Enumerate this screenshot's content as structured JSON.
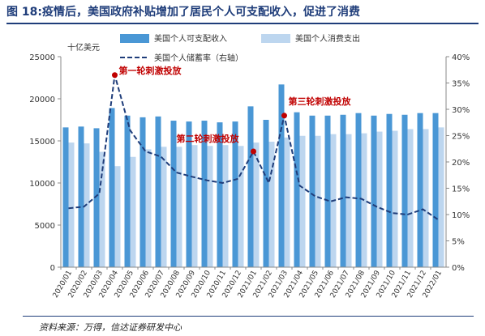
{
  "header": {
    "title": "图 18:疫情后，美国政府补贴增加了居民个人可支配收入，促进了消费"
  },
  "footer": {
    "source": "资料来源：万得，信达证券研发中心"
  },
  "colors": {
    "income": "#4a97d5",
    "consumption": "#bdd6ef",
    "savings_line": "#1f3d7a",
    "annotation": "#c00000",
    "title": "#1f3d7a"
  },
  "chart_data": {
    "type": "bar",
    "unit_label": "十亿美元",
    "categories": [
      "2020/01",
      "2020/02",
      "2020/03",
      "2020/04",
      "2020/05",
      "2020/06",
      "2020/07",
      "2020/08",
      "2020/09",
      "2020/10",
      "2020/11",
      "2020/12",
      "2021/01",
      "2021/02",
      "2021/03",
      "2021/04",
      "2021/05",
      "2021/06",
      "2021/07",
      "2021/08",
      "2021/09",
      "2021/10",
      "2021/11",
      "2021/12",
      "2022/01"
    ],
    "series": [
      {
        "name": "美国个人可支配收入",
        "axis": "left",
        "type": "bar",
        "values": [
          16600,
          16700,
          16500,
          18900,
          18000,
          17800,
          17900,
          17400,
          17300,
          17400,
          17200,
          17300,
          19100,
          17500,
          21700,
          18400,
          18000,
          18000,
          18100,
          18300,
          18000,
          18200,
          18100,
          18300,
          18300
        ]
      },
      {
        "name": "美国个人消费支出",
        "axis": "left",
        "type": "bar",
        "values": [
          14800,
          14700,
          13700,
          12000,
          13100,
          14000,
          14300,
          14300,
          14500,
          14400,
          14500,
          14400,
          14800,
          14900,
          15400,
          15600,
          15600,
          15800,
          15800,
          15900,
          16100,
          16200,
          16400,
          16400,
          16600
        ]
      },
      {
        "name": "美国个人储蓄率（右轴）",
        "axis": "right",
        "type": "line",
        "values": [
          11.2,
          11.5,
          14.0,
          36.5,
          26.0,
          22.0,
          21.0,
          18.0,
          17.2,
          16.5,
          16.0,
          16.8,
          22.0,
          16.0,
          28.8,
          15.5,
          13.5,
          12.5,
          13.3,
          13.0,
          11.5,
          10.3,
          10.0,
          11.0,
          9.0
        ]
      }
    ],
    "left_axis": {
      "min": 0,
      "max": 25000,
      "ticks": [
        "0",
        "5000",
        "10000",
        "15000",
        "20000",
        "25000"
      ]
    },
    "right_axis": {
      "min": 0,
      "max": 40,
      "ticks": [
        "0%",
        "5%",
        "10%",
        "15%",
        "20%",
        "25%",
        "30%",
        "35%",
        "40%"
      ]
    },
    "annotations": [
      {
        "label": "第一轮刺激投放",
        "category_index": 3
      },
      {
        "label": "第二轮刺激投放",
        "category_index": 12
      },
      {
        "label": "第三轮刺激投放",
        "category_index": 14
      }
    ],
    "grid": false,
    "legend": "top"
  }
}
